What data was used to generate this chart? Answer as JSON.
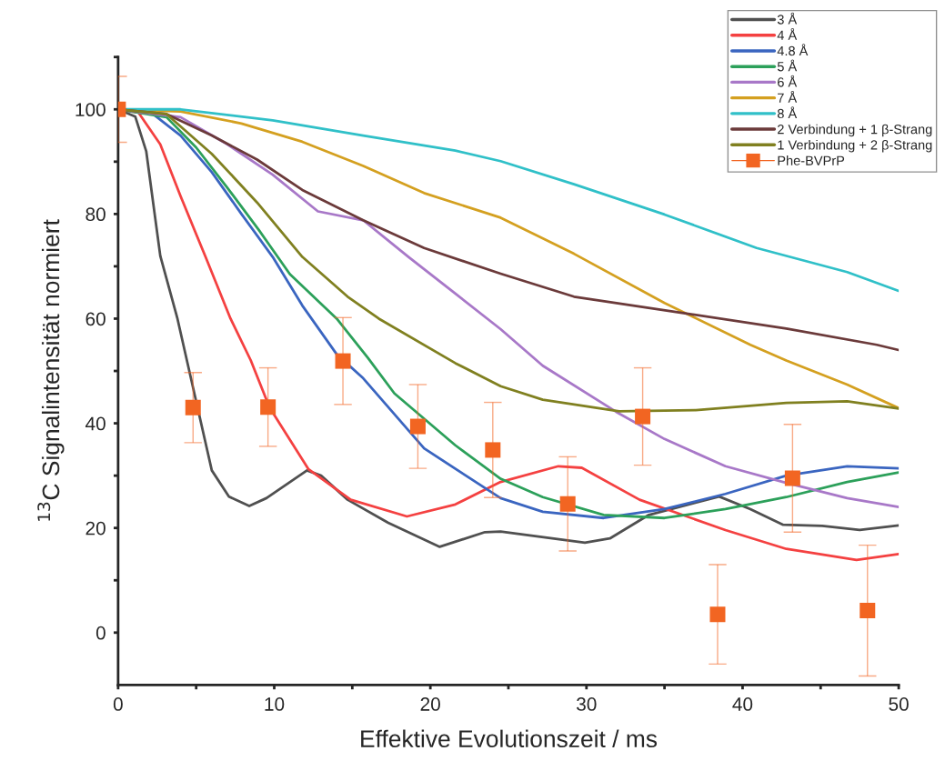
{
  "chart_data": {
    "type": "line",
    "xlabel": "Effektive Evolutionszeit / ms",
    "ylabel": "$^{13}$C Signalintensität normiert",
    "xlim": [
      0,
      50
    ],
    "ylim": [
      -10,
      110
    ],
    "xticks": [
      0,
      {
        "value": 5,
        "label": null
      },
      10,
      {
        "value": 15,
        "label": null
      },
      20,
      {
        "value": 25,
        "label": null
      },
      30,
      {
        "value": 35,
        "label": null
      },
      40,
      {
        "value": 45,
        "label": null
      },
      50
    ],
    "yticks": [
      0,
      {
        "value": 10,
        "label": null
      },
      20,
      {
        "value": 30,
        "label": null
      },
      40,
      {
        "value": 50,
        "label": null
      },
      60,
      {
        "value": 70,
        "label": null
      },
      80,
      {
        "value": 90,
        "label": null
      },
      100,
      {
        "value": 110,
        "label": null
      }
    ],
    "legend": "top right",
    "grid": false,
    "series": [
      {
        "name": "3 Å",
        "color": "#505050",
        "x": [
          0,
          1.1,
          1.8,
          2.7,
          3.8,
          6.0,
          7.1,
          8.4,
          9.5,
          12.1,
          13.0,
          14.7,
          17.3,
          20.6,
          23.5,
          24.5,
          29.9,
          31.5,
          34.0,
          38.5,
          40.5,
          42.6,
          45.1,
          47.5,
          50
        ],
        "values": [
          100,
          98.6,
          92,
          72,
          60,
          31,
          26,
          24.2,
          25.7,
          31,
          30,
          25.4,
          21,
          16.4,
          19.2,
          19.3,
          17.2,
          18,
          22.5,
          26,
          23.6,
          20.6,
          20.4,
          19.6,
          20.5
        ]
      },
      {
        "name": "4 Å",
        "color": "#f44141",
        "x": [
          0,
          1.3,
          2.7,
          4.0,
          5.6,
          7.2,
          8.5,
          9.7,
          12.2,
          14.9,
          18.5,
          21.6,
          24.5,
          28.2,
          29.7,
          33.4,
          38.9,
          42.8,
          47.3,
          50
        ],
        "values": [
          100,
          99.4,
          93.3,
          83.4,
          71.8,
          60,
          52,
          43,
          31.2,
          25.4,
          22.2,
          24.5,
          28.8,
          31.8,
          31.5,
          25.4,
          19.6,
          16,
          13.9,
          15
        ]
      },
      {
        "name": "4.8 Å",
        "color": "#3a65c0",
        "x": [
          0,
          2.1,
          4.0,
          6.0,
          7.9,
          9.9,
          11.8,
          14.0,
          15.7,
          19.6,
          24.5,
          27.2,
          31.1,
          35.0,
          38.9,
          42.8,
          46.7,
          50
        ],
        "values": [
          100,
          99.4,
          95,
          88,
          80,
          71.8,
          62.5,
          53.2,
          48.6,
          35.2,
          25.7,
          23.1,
          21.9,
          23.6,
          26.5,
          30,
          31.8,
          31.4
        ]
      },
      {
        "name": "5 Å",
        "color": "#2ca05a",
        "x": [
          0,
          3.1,
          5.0,
          7.0,
          9.0,
          11.0,
          14.0,
          16.0,
          17.7,
          21.6,
          24.5,
          27.2,
          31.1,
          35.0,
          38.9,
          42.8,
          46.7,
          50
        ],
        "values": [
          100,
          98.5,
          92.7,
          85,
          77,
          68.5,
          60,
          52.5,
          45.7,
          35.8,
          29.4,
          25.9,
          22.5,
          21.9,
          23.6,
          25.9,
          28.8,
          30.6
        ]
      },
      {
        "name": "6 Å",
        "color": "#a878c8",
        "x": [
          0,
          4.0,
          7.0,
          9.9,
          12.8,
          15.7,
          18.6,
          21.6,
          24.5,
          27.2,
          31.9,
          35.0,
          38.9,
          42.8,
          46.7,
          50
        ],
        "values": [
          100,
          98.5,
          93.3,
          87.5,
          80.5,
          78.8,
          71.8,
          64.8,
          58,
          51,
          42.2,
          37,
          31.8,
          28.6,
          25.7,
          24
        ]
      },
      {
        "name": "7 Å",
        "color": "#d4a020",
        "x": [
          0,
          4.0,
          7.9,
          11.8,
          15.7,
          19.6,
          24.5,
          29.2,
          35.0,
          40.5,
          42.8,
          46.7,
          50
        ],
        "values": [
          100,
          99.6,
          97.3,
          93.8,
          89.2,
          84,
          79.3,
          72.4,
          63,
          55,
          52,
          47.4,
          42.9
        ]
      },
      {
        "name": "8 Å",
        "color": "#30c0c8",
        "x": [
          0,
          4.0,
          9.9,
          15.7,
          21.6,
          24.5,
          29.2,
          35.0,
          40.9,
          46.7,
          50
        ],
        "values": [
          100,
          100,
          97.9,
          95,
          92.1,
          90.1,
          85.7,
          79.9,
          73.5,
          68.9,
          65.3
        ]
      },
      {
        "name": "2 Verbindung + 1 β-Strang",
        "color": "#6b3a3a",
        "x": [
          0,
          3.1,
          6.0,
          8.9,
          11.8,
          15.7,
          19.6,
          24.5,
          29.2,
          36.8,
          42.8,
          48.6,
          50
        ],
        "values": [
          100,
          99.1,
          95,
          90.4,
          84.6,
          78.8,
          73.5,
          68.6,
          64.2,
          60.8,
          58.1,
          55,
          54
        ]
      },
      {
        "name": "1 Verbindung + 2 β-Strang",
        "color": "#808020",
        "x": [
          0,
          3.1,
          6.0,
          8.9,
          11.8,
          14.7,
          16.7,
          21.6,
          24.5,
          27.2,
          32.1,
          37.0,
          42.8,
          46.7,
          50
        ],
        "values": [
          100,
          99.1,
          91.5,
          82.2,
          71.8,
          64.2,
          60,
          51.5,
          47.1,
          44.5,
          42.3,
          42.5,
          43.9,
          44.2,
          42.8
        ]
      },
      {
        "name": "Phe-BVPrP",
        "type": "scatter",
        "marker": "square",
        "color": "#f26522",
        "x": [
          0,
          4.8,
          9.6,
          14.4,
          19.2,
          24,
          28.8,
          33.6,
          38.4,
          43.2,
          48
        ],
        "values": [
          100,
          43,
          43.1,
          51.9,
          39.4,
          34.9,
          24.6,
          41.3,
          3.5,
          29.5,
          4.2
        ],
        "errors": [
          6.3,
          6.7,
          7.5,
          8.3,
          8,
          9.1,
          9,
          9.3,
          9.5,
          10.3,
          12.5
        ]
      }
    ]
  }
}
